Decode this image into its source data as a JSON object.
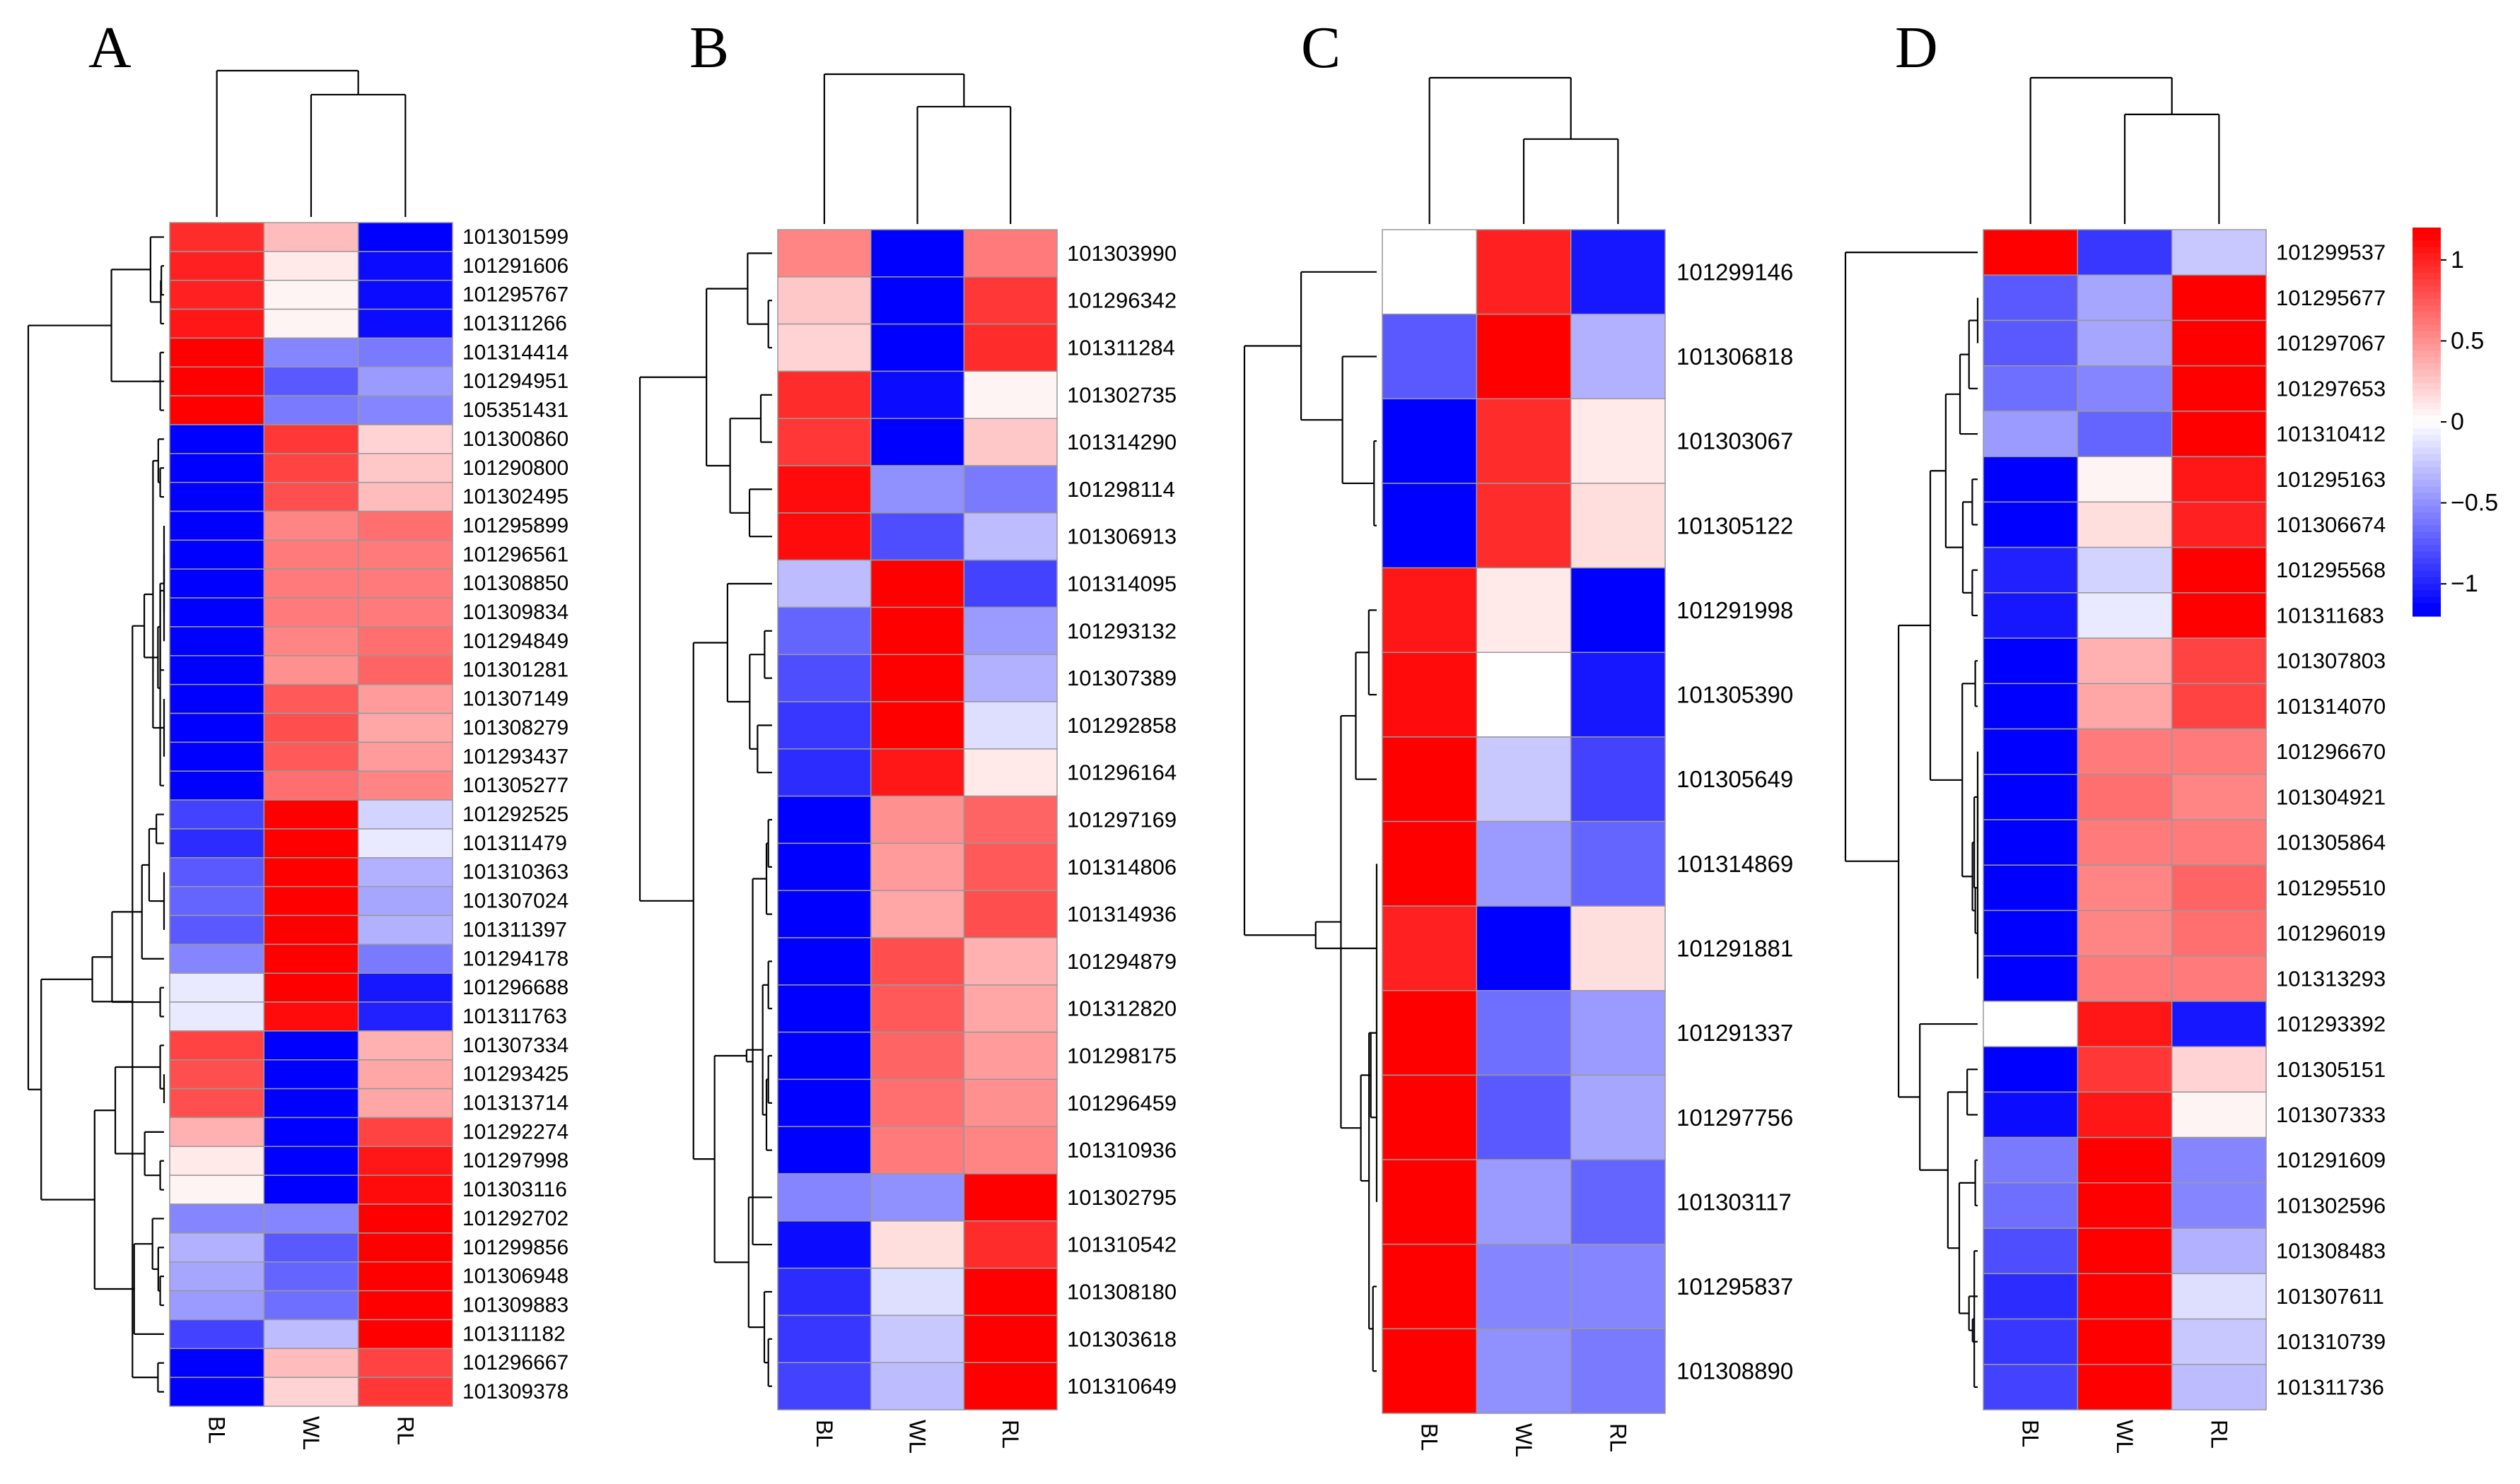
{
  "chart_data": [
    {
      "panel": "A",
      "type": "heatmap",
      "columns": [
        "BL",
        "WL",
        "RL"
      ],
      "rows": [
        "101301599",
        "101291606",
        "101295767",
        "101311266",
        "101314414",
        "101294951",
        "105351431",
        "101300860",
        "101290800",
        "101302495",
        "101295899",
        "101296561",
        "101308850",
        "101309834",
        "101294849",
        "101301281",
        "101307149",
        "101308279",
        "101293437",
        "101305277",
        "101292525",
        "101311479",
        "101310363",
        "101307024",
        "101311397",
        "101294178",
        "101296688",
        "101311763",
        "101307334",
        "101293425",
        "101313714",
        "101292274",
        "101297998",
        "101303116",
        "101292702",
        "101299856",
        "101306948",
        "101309883",
        "101311182",
        "101296667",
        "101309378"
      ],
      "values": [
        [
          0.95,
          0.3,
          -1.15
        ],
        [
          1.0,
          0.1,
          -1.1
        ],
        [
          1.0,
          0.05,
          -1.1
        ],
        [
          1.05,
          0.05,
          -1.1
        ],
        [
          1.15,
          -0.55,
          -0.6
        ],
        [
          1.15,
          -0.75,
          -0.45
        ],
        [
          1.15,
          -0.6,
          -0.55
        ],
        [
          -1.15,
          0.9,
          0.2
        ],
        [
          -1.15,
          0.85,
          0.25
        ],
        [
          -1.15,
          0.8,
          0.3
        ],
        [
          -1.15,
          0.55,
          0.65
        ],
        [
          -1.15,
          0.6,
          0.6
        ],
        [
          -1.15,
          0.6,
          0.6
        ],
        [
          -1.15,
          0.6,
          0.6
        ],
        [
          -1.15,
          0.55,
          0.65
        ],
        [
          -1.15,
          0.5,
          0.7
        ],
        [
          -1.15,
          0.75,
          0.45
        ],
        [
          -1.15,
          0.8,
          0.4
        ],
        [
          -1.15,
          0.75,
          0.45
        ],
        [
          -1.15,
          0.65,
          0.55
        ],
        [
          -0.85,
          1.15,
          -0.2
        ],
        [
          -0.95,
          1.15,
          -0.1
        ],
        [
          -0.75,
          1.15,
          -0.35
        ],
        [
          -0.7,
          1.15,
          -0.4
        ],
        [
          -0.75,
          1.15,
          -0.35
        ],
        [
          -0.55,
          1.15,
          -0.6
        ],
        [
          -0.1,
          1.15,
          -1.05
        ],
        [
          -0.1,
          1.1,
          -1.0
        ],
        [
          0.85,
          -1.15,
          0.35
        ],
        [
          0.8,
          -1.15,
          0.4
        ],
        [
          0.8,
          -1.15,
          0.4
        ],
        [
          0.35,
          -1.15,
          0.85
        ],
        [
          0.1,
          -1.15,
          1.05
        ],
        [
          0.05,
          -1.15,
          1.1
        ],
        [
          -0.55,
          -0.55,
          1.15
        ],
        [
          -0.35,
          -0.75,
          1.15
        ],
        [
          -0.4,
          -0.7,
          1.15
        ],
        [
          -0.45,
          -0.65,
          1.15
        ],
        [
          -0.85,
          -0.3,
          1.15
        ],
        [
          -1.15,
          0.3,
          0.85
        ],
        [
          -1.15,
          0.2,
          0.9
        ]
      ]
    },
    {
      "panel": "B",
      "type": "heatmap",
      "columns": [
        "BL",
        "WL",
        "RL"
      ],
      "rows": [
        "101303990",
        "101296342",
        "101311284",
        "101302735",
        "101314290",
        "101298114",
        "101306913",
        "101314095",
        "101293132",
        "101307389",
        "101292858",
        "101296164",
        "101297169",
        "101314806",
        "101314936",
        "101294879",
        "101312820",
        "101298175",
        "101296459",
        "101310936",
        "101302795",
        "101310542",
        "101308180",
        "101303618",
        "101310649"
      ],
      "values": [
        [
          0.55,
          -1.15,
          0.6
        ],
        [
          0.25,
          -1.15,
          0.9
        ],
        [
          0.2,
          -1.15,
          0.95
        ],
        [
          0.95,
          -1.1,
          0.05
        ],
        [
          0.9,
          -1.15,
          0.25
        ],
        [
          1.1,
          -0.5,
          -0.6
        ],
        [
          1.1,
          -0.8,
          -0.3
        ],
        [
          -0.3,
          1.15,
          -0.85
        ],
        [
          -0.7,
          1.15,
          -0.45
        ],
        [
          -0.8,
          1.15,
          -0.35
        ],
        [
          -0.9,
          1.15,
          -0.15
        ],
        [
          -0.95,
          1.05,
          0.1
        ],
        [
          -1.15,
          0.5,
          0.7
        ],
        [
          -1.15,
          0.45,
          0.75
        ],
        [
          -1.15,
          0.4,
          0.8
        ],
        [
          -1.15,
          0.8,
          0.35
        ],
        [
          -1.15,
          0.75,
          0.4
        ],
        [
          -1.15,
          0.7,
          0.45
        ],
        [
          -1.15,
          0.65,
          0.5
        ],
        [
          -1.15,
          0.6,
          0.55
        ],
        [
          -0.55,
          -0.5,
          1.15
        ],
        [
          -1.1,
          0.15,
          0.95
        ],
        [
          -0.95,
          -0.15,
          1.15
        ],
        [
          -0.9,
          -0.25,
          1.15
        ],
        [
          -0.85,
          -0.3,
          1.15
        ]
      ]
    },
    {
      "panel": "C",
      "type": "heatmap",
      "columns": [
        "BL",
        "WL",
        "RL"
      ],
      "rows": [
        "101299146",
        "101306818",
        "101303067",
        "101305122",
        "101291998",
        "101305390",
        "101305649",
        "101314869",
        "101291881",
        "101291337",
        "101297756",
        "101303117",
        "101295837",
        "101308890"
      ],
      "values": [
        [
          0.0,
          1.0,
          -1.05
        ],
        [
          -0.75,
          1.15,
          -0.35
        ],
        [
          -1.15,
          0.95,
          0.1
        ],
        [
          -1.15,
          0.95,
          0.15
        ],
        [
          1.05,
          0.1,
          -1.15
        ],
        [
          1.1,
          0.0,
          -1.05
        ],
        [
          1.15,
          -0.25,
          -0.85
        ],
        [
          1.15,
          -0.45,
          -0.7
        ],
        [
          1.0,
          -1.15,
          0.15
        ],
        [
          1.15,
          -0.65,
          -0.45
        ],
        [
          1.15,
          -0.75,
          -0.4
        ],
        [
          1.15,
          -0.45,
          -0.7
        ],
        [
          1.15,
          -0.55,
          -0.55
        ],
        [
          1.15,
          -0.5,
          -0.6
        ]
      ]
    },
    {
      "panel": "D",
      "type": "heatmap",
      "columns": [
        "BL",
        "WL",
        "RL"
      ],
      "rows": [
        "101299537",
        "101295677",
        "101297067",
        "101297653",
        "101310412",
        "101295163",
        "101306674",
        "101295568",
        "101311683",
        "101307803",
        "101314070",
        "101296670",
        "101304921",
        "101305864",
        "101295510",
        "101296019",
        "101313293",
        "101293392",
        "101305151",
        "101307333",
        "101291609",
        "101302596",
        "101308483",
        "101307611",
        "101310739",
        "101311736"
      ],
      "values": [
        [
          1.15,
          -0.9,
          -0.25
        ],
        [
          -0.75,
          -0.4,
          1.15
        ],
        [
          -0.75,
          -0.4,
          1.15
        ],
        [
          -0.65,
          -0.55,
          1.15
        ],
        [
          -0.45,
          -0.7,
          1.15
        ],
        [
          -1.15,
          0.05,
          1.05
        ],
        [
          -1.15,
          0.15,
          1.0
        ],
        [
          -1.0,
          -0.2,
          1.15
        ],
        [
          -1.05,
          -0.1,
          1.15
        ],
        [
          -1.15,
          0.35,
          0.85
        ],
        [
          -1.15,
          0.4,
          0.85
        ],
        [
          -1.15,
          0.6,
          0.6
        ],
        [
          -1.15,
          0.65,
          0.55
        ],
        [
          -1.15,
          0.6,
          0.6
        ],
        [
          -1.15,
          0.55,
          0.7
        ],
        [
          -1.15,
          0.55,
          0.65
        ],
        [
          -1.15,
          0.6,
          0.6
        ],
        [
          0.0,
          1.05,
          -1.05
        ],
        [
          -1.15,
          0.9,
          0.2
        ],
        [
          -1.1,
          1.05,
          0.05
        ],
        [
          -0.6,
          1.15,
          -0.55
        ],
        [
          -0.65,
          1.15,
          -0.55
        ],
        [
          -0.8,
          1.15,
          -0.35
        ],
        [
          -0.95,
          1.15,
          -0.15
        ],
        [
          -0.9,
          1.15,
          -0.25
        ],
        [
          -0.85,
          1.15,
          -0.3
        ]
      ]
    }
  ],
  "legend": {
    "ticks": [
      {
        "value": 1,
        "label": "1"
      },
      {
        "value": 0.5,
        "label": "0.5"
      },
      {
        "value": 0,
        "label": "0"
      },
      {
        "value": -0.5,
        "label": "−0.5"
      },
      {
        "value": -1,
        "label": "−1"
      }
    ],
    "range": [
      -1.2,
      1.2
    ]
  },
  "colors": {
    "low": "#0000ff",
    "mid": "#ffffff",
    "high": "#ff0000",
    "grid": "#999999",
    "dendrogram": "#000000"
  }
}
